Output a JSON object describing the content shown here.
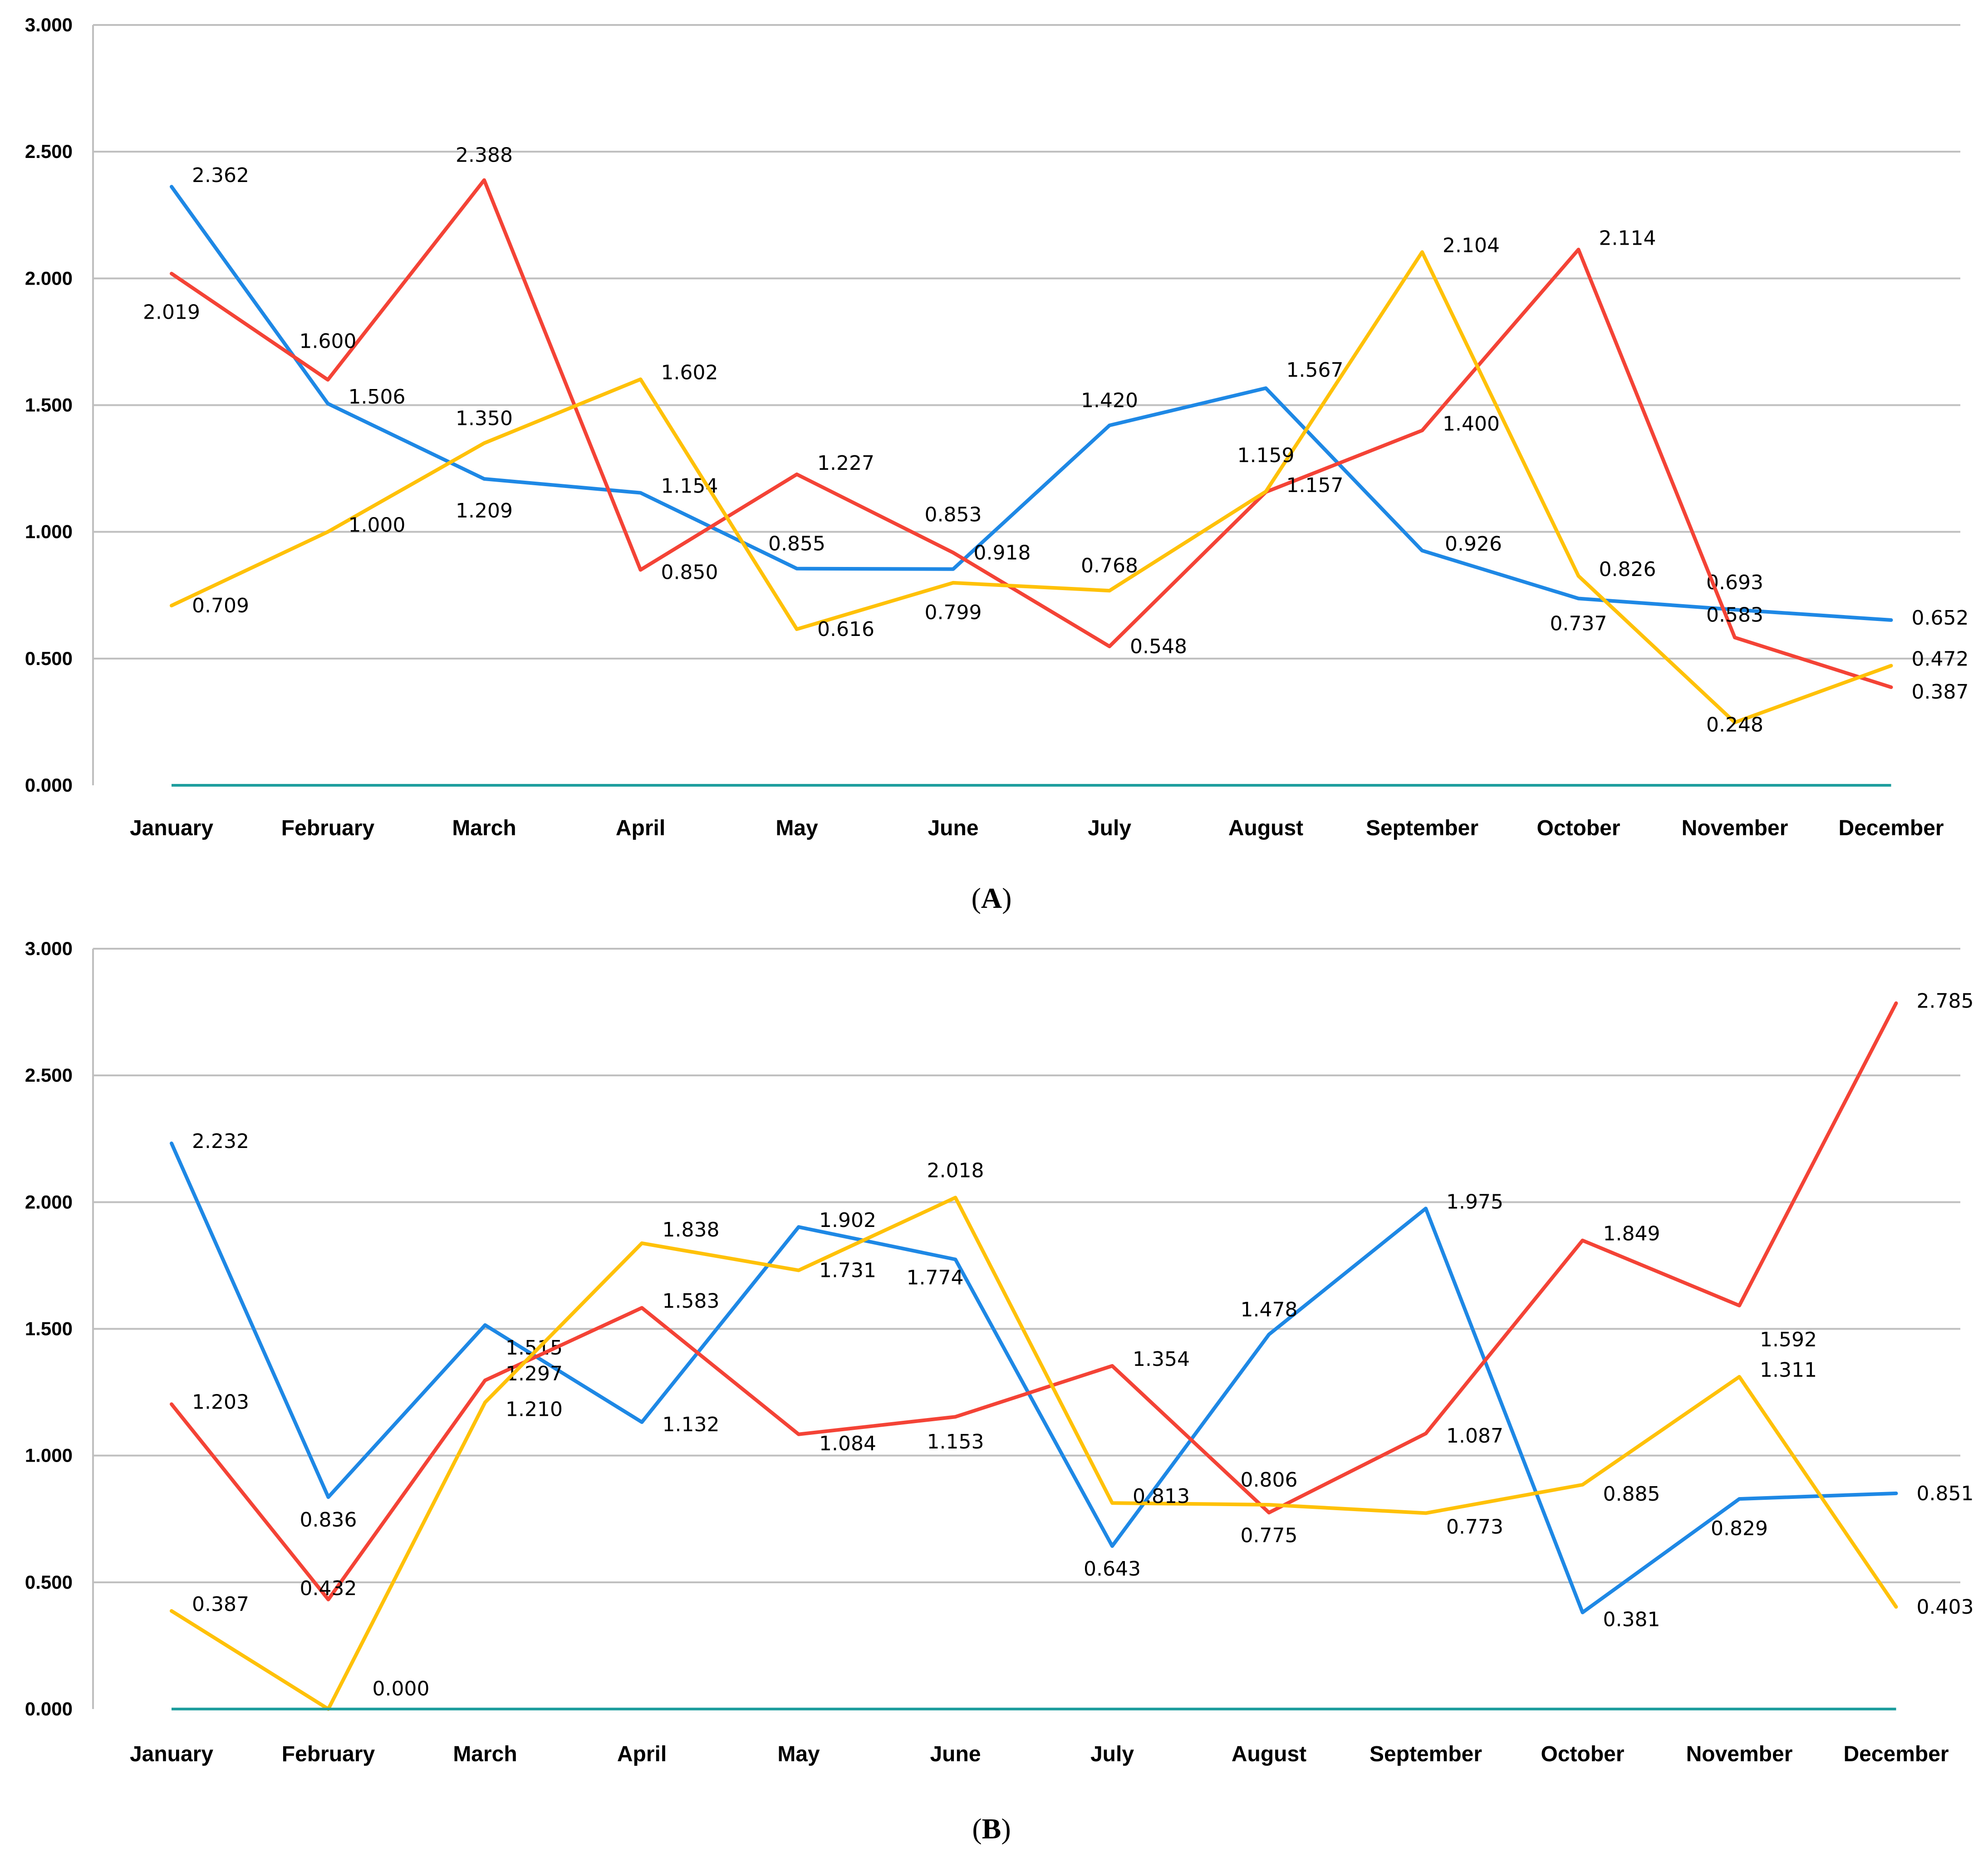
{
  "colors": {
    "blue": "#1e88e5",
    "red": "#f44336",
    "yellow": "#ffc107",
    "baseline": "#1f9e9e",
    "grid": "#bfbfbf"
  },
  "chart_data": [
    {
      "type": "line",
      "caption": "A",
      "categories": [
        "January",
        "February",
        "March",
        "April",
        "May",
        "June",
        "July",
        "August",
        "September",
        "October",
        "November",
        "December"
      ],
      "ylim": [
        0,
        3
      ],
      "yticks": [
        "0.000",
        "0.500",
        "1.000",
        "1.500",
        "2.000",
        "2.500",
        "3.000"
      ],
      "ytick_values": [
        0,
        0.5,
        1,
        1.5,
        2,
        2.5,
        3
      ],
      "series": [
        {
          "name": "blue",
          "color": "#1e88e5",
          "values": [
            2.362,
            1.506,
            1.209,
            1.154,
            0.855,
            0.853,
            1.42,
            1.567,
            0.926,
            0.737,
            0.693,
            0.652
          ],
          "labels": [
            "2.362",
            "1.506",
            "1.209",
            "1.154",
            "0.855",
            "0.853",
            "1.420",
            "1.567",
            "0.926",
            "0.737",
            "0.693",
            "0.652"
          ]
        },
        {
          "name": "red",
          "color": "#f44336",
          "values": [
            2.019,
            1.6,
            2.388,
            0.85,
            1.227,
            0.918,
            0.548,
            1.157,
            1.4,
            2.114,
            0.583,
            0.387
          ],
          "labels": [
            "2.019",
            "1.600",
            "2.388",
            "0.850",
            "1.227",
            "0.918",
            "0.548",
            "1.157",
            "1.400",
            "2.114",
            "0.583",
            "0.387"
          ]
        },
        {
          "name": "yellow",
          "color": "#ffc107",
          "values": [
            0.709,
            1.0,
            1.35,
            1.602,
            0.616,
            0.799,
            0.768,
            1.159,
            2.104,
            0.826,
            0.248,
            0.472
          ],
          "labels": [
            "0.709",
            "1.000",
            "1.350",
            "1.602",
            "0.616",
            "0.799",
            "0.768",
            "1.159",
            "2.104",
            "0.826",
            "0.248",
            "0.472"
          ]
        },
        {
          "name": "baseline",
          "color": "#1f9e9e",
          "values": [
            0,
            0,
            0,
            0,
            0,
            0,
            0,
            0,
            0,
            0,
            0,
            0
          ],
          "labels": []
        }
      ]
    },
    {
      "type": "line",
      "caption": "B",
      "categories": [
        "January",
        "February",
        "March",
        "April",
        "May",
        "June",
        "July",
        "August",
        "September",
        "October",
        "November",
        "December"
      ],
      "ylim": [
        0,
        3
      ],
      "yticks": [
        "0.000",
        "0.500",
        "1.000",
        "1.500",
        "2.000",
        "2.500",
        "3.000"
      ],
      "ytick_values": [
        0,
        0.5,
        1,
        1.5,
        2,
        2.5,
        3
      ],
      "series": [
        {
          "name": "blue",
          "color": "#1e88e5",
          "values": [
            2.232,
            0.836,
            1.515,
            1.132,
            1.902,
            1.774,
            0.643,
            1.478,
            1.975,
            0.381,
            0.829,
            0.851
          ],
          "labels": [
            "2.232",
            "0.836",
            "1.515",
            "1.132",
            "1.902",
            "1.774",
            "0.643",
            "1.478",
            "1.975",
            "0.381",
            "0.829",
            "0.851"
          ]
        },
        {
          "name": "red",
          "color": "#f44336",
          "values": [
            1.203,
            0.432,
            1.297,
            1.583,
            1.084,
            1.153,
            1.354,
            0.775,
            1.087,
            1.849,
            1.592,
            2.785
          ],
          "labels": [
            "1.203",
            "0.432",
            "1.297",
            "1.583",
            "1.084",
            "1.153",
            "1.354",
            "0.775",
            "1.087",
            "1.849",
            "1.592",
            "2.785"
          ]
        },
        {
          "name": "yellow",
          "color": "#ffc107",
          "values": [
            0.387,
            0.0,
            1.21,
            1.838,
            1.731,
            2.018,
            0.813,
            0.806,
            0.773,
            0.885,
            1.311,
            0.403
          ],
          "labels": [
            "0.387",
            "0.000",
            "1.210",
            "1.838",
            "1.731",
            "2.018",
            "0.813",
            "0.806",
            "0.773",
            "0.885",
            "1.311",
            "0.403"
          ]
        },
        {
          "name": "baseline",
          "color": "#1f9e9e",
          "values": [
            0,
            0,
            0,
            0,
            0,
            0,
            0,
            0,
            0,
            0,
            0,
            0
          ],
          "labels": []
        }
      ]
    }
  ]
}
